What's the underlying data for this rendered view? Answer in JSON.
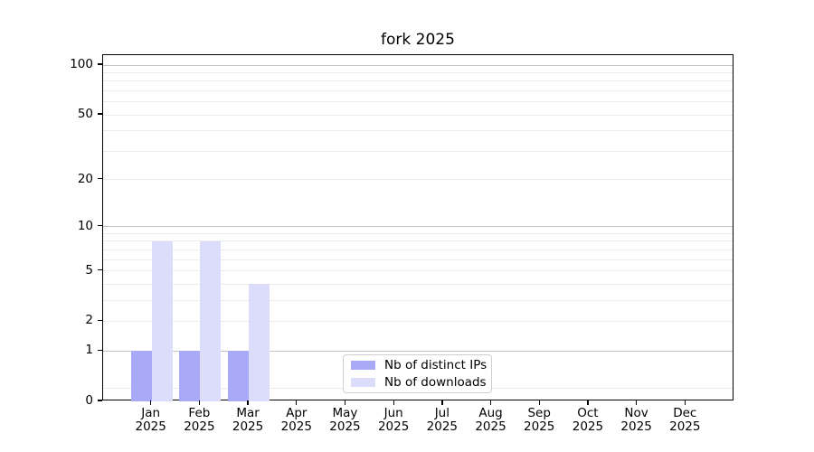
{
  "chart_data": {
    "type": "bar",
    "title": "fork 2025",
    "categories": [
      "Jan 2025",
      "Feb 2025",
      "Mar 2025",
      "Apr 2025",
      "May 2025",
      "Jun 2025",
      "Jul 2025",
      "Aug 2025",
      "Sep 2025",
      "Oct 2025",
      "Nov 2025",
      "Dec 2025"
    ],
    "series": [
      {
        "name": "Nb of distinct IPs",
        "color": "#a9aaf7",
        "values": [
          1,
          1,
          1,
          0,
          0,
          0,
          0,
          0,
          0,
          0,
          0,
          0
        ]
      },
      {
        "name": "Nb of downloads",
        "color": "#dcddfa",
        "values": [
          8,
          8,
          4,
          0,
          0,
          0,
          0,
          0,
          0,
          0,
          0,
          0
        ]
      }
    ],
    "yscale": "log1p",
    "ylim": [
      0,
      115
    ],
    "yticks": [
      0,
      1,
      2,
      5,
      10,
      20,
      50,
      100
    ],
    "grid": {
      "major_values": [
        1,
        10,
        100
      ],
      "minor_values": [
        0.2,
        2,
        3,
        4,
        5,
        6,
        7,
        8,
        9,
        20,
        30,
        40,
        50,
        60,
        70,
        80,
        90
      ],
      "major_color": "#c2c2c2",
      "minor_color": "#ebebeb"
    },
    "legend_position": "lower center inside",
    "axis_color": "#000000",
    "background_color": "#ffffff"
  }
}
